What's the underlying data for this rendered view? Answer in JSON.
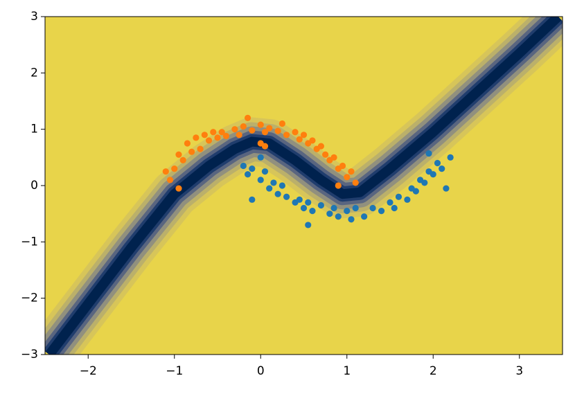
{
  "chart_data": {
    "type": "scatter",
    "xlim": [
      -2.5,
      3.5
    ],
    "ylim": [
      -3,
      3
    ],
    "xticks": [
      {
        "value": -2,
        "label": "−2"
      },
      {
        "value": -1,
        "label": "−1"
      },
      0,
      1,
      2,
      3
    ],
    "yticks": [
      {
        "value": -3,
        "label": "−3"
      },
      {
        "value": -2,
        "label": "−2"
      },
      {
        "value": -1,
        "label": "−1"
      },
      0,
      1,
      2,
      3
    ],
    "background_color": "#e8d44a",
    "boundary": {
      "color": "#00224e",
      "x": [
        -2.45,
        -2,
        -1.5,
        -1,
        -0.6,
        -0.3,
        -0.1,
        0.1,
        0.4,
        0.7,
        0.95,
        1.15,
        1.5,
        2,
        2.5,
        3,
        3.45
      ],
      "y": [
        -3,
        -2.1,
        -1.1,
        -0.15,
        0.35,
        0.65,
        0.78,
        0.75,
        0.45,
        0.1,
        -0.15,
        -0.12,
        0.3,
        0.95,
        1.65,
        2.35,
        3
      ]
    },
    "series": [
      {
        "color": "#1f77b4",
        "x": [
          -0.2,
          -0.15,
          -0.1,
          0.0,
          0.05,
          0.1,
          0.15,
          0.2,
          0.25,
          0.3,
          0.4,
          0.45,
          0.5,
          0.55,
          0.6,
          0.7,
          0.8,
          0.85,
          0.9,
          1.0,
          1.05,
          1.1,
          1.2,
          1.3,
          1.4,
          1.5,
          1.55,
          1.6,
          1.7,
          1.75,
          1.8,
          1.85,
          1.9,
          1.95,
          2.0,
          2.05,
          2.1,
          2.2,
          2.15,
          0.55,
          1.95,
          0.0,
          -0.1
        ],
        "y": [
          0.35,
          0.2,
          0.3,
          0.1,
          0.25,
          -0.05,
          0.05,
          -0.15,
          0.0,
          -0.2,
          -0.3,
          -0.25,
          -0.4,
          -0.3,
          -0.45,
          -0.35,
          -0.5,
          -0.4,
          -0.55,
          -0.45,
          -0.6,
          -0.4,
          -0.55,
          -0.4,
          -0.45,
          -0.3,
          -0.4,
          -0.2,
          -0.25,
          -0.05,
          -0.1,
          0.1,
          0.05,
          0.25,
          0.2,
          0.4,
          0.3,
          0.5,
          -0.05,
          -0.7,
          0.57,
          0.5,
          -0.25
        ]
      },
      {
        "color": "#ff7f0e",
        "x": [
          -1.1,
          -1.05,
          -1.0,
          -0.95,
          -0.9,
          -0.85,
          -0.8,
          -0.75,
          -0.7,
          -0.65,
          -0.6,
          -0.55,
          -0.5,
          -0.45,
          -0.4,
          -0.3,
          -0.25,
          -0.2,
          -0.1,
          0.0,
          0.05,
          0.1,
          0.2,
          0.25,
          0.3,
          0.4,
          0.45,
          0.5,
          0.55,
          0.6,
          0.65,
          0.7,
          0.75,
          0.8,
          0.85,
          0.9,
          0.95,
          1.0,
          1.05,
          1.1,
          -0.95,
          -0.15,
          0.9,
          0.05,
          0.0
        ],
        "y": [
          0.25,
          0.1,
          0.3,
          0.55,
          0.45,
          0.75,
          0.6,
          0.85,
          0.65,
          0.9,
          0.8,
          0.95,
          0.85,
          0.95,
          0.88,
          1.0,
          0.9,
          1.05,
          0.98,
          1.08,
          0.95,
          1.02,
          0.97,
          1.1,
          0.9,
          0.95,
          0.82,
          0.9,
          0.75,
          0.8,
          0.65,
          0.7,
          0.55,
          0.45,
          0.5,
          0.3,
          0.35,
          0.15,
          0.25,
          0.05,
          -0.05,
          1.2,
          0.0,
          0.7,
          0.75
        ]
      }
    ]
  }
}
